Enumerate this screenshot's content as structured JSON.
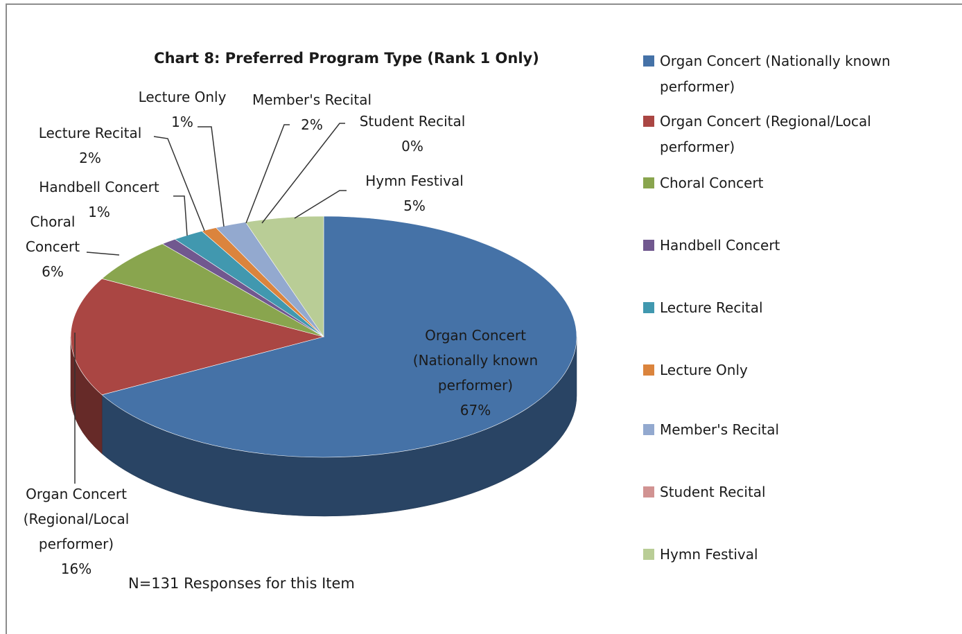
{
  "chart_data": {
    "type": "pie",
    "title": "Chart 8: Preferred Program Type (Rank 1 Only)",
    "annotation": "N=131 Responses for this Item",
    "categories": [
      "Organ Concert (Nationally known performer)",
      "Organ Concert (Regional/Local performer)",
      "Choral Concert",
      "Handbell Concert",
      "Lecture Recital",
      "Lecture Only",
      "Member's Recital",
      "Student Recital",
      "Hymn Festival"
    ],
    "values": [
      67,
      16,
      6,
      1,
      2,
      1,
      2,
      0,
      5
    ],
    "value_labels": [
      "67%",
      "16%",
      "6%",
      "1%",
      "2%",
      "1%",
      "2%",
      "0%",
      "5%"
    ],
    "colors": [
      "#4572a7",
      "#aa4643",
      "#89a54e",
      "#71588f",
      "#4198af",
      "#db843d",
      "#93a9cf",
      "#d19392",
      "#b9cd96"
    ],
    "legend": "right"
  }
}
